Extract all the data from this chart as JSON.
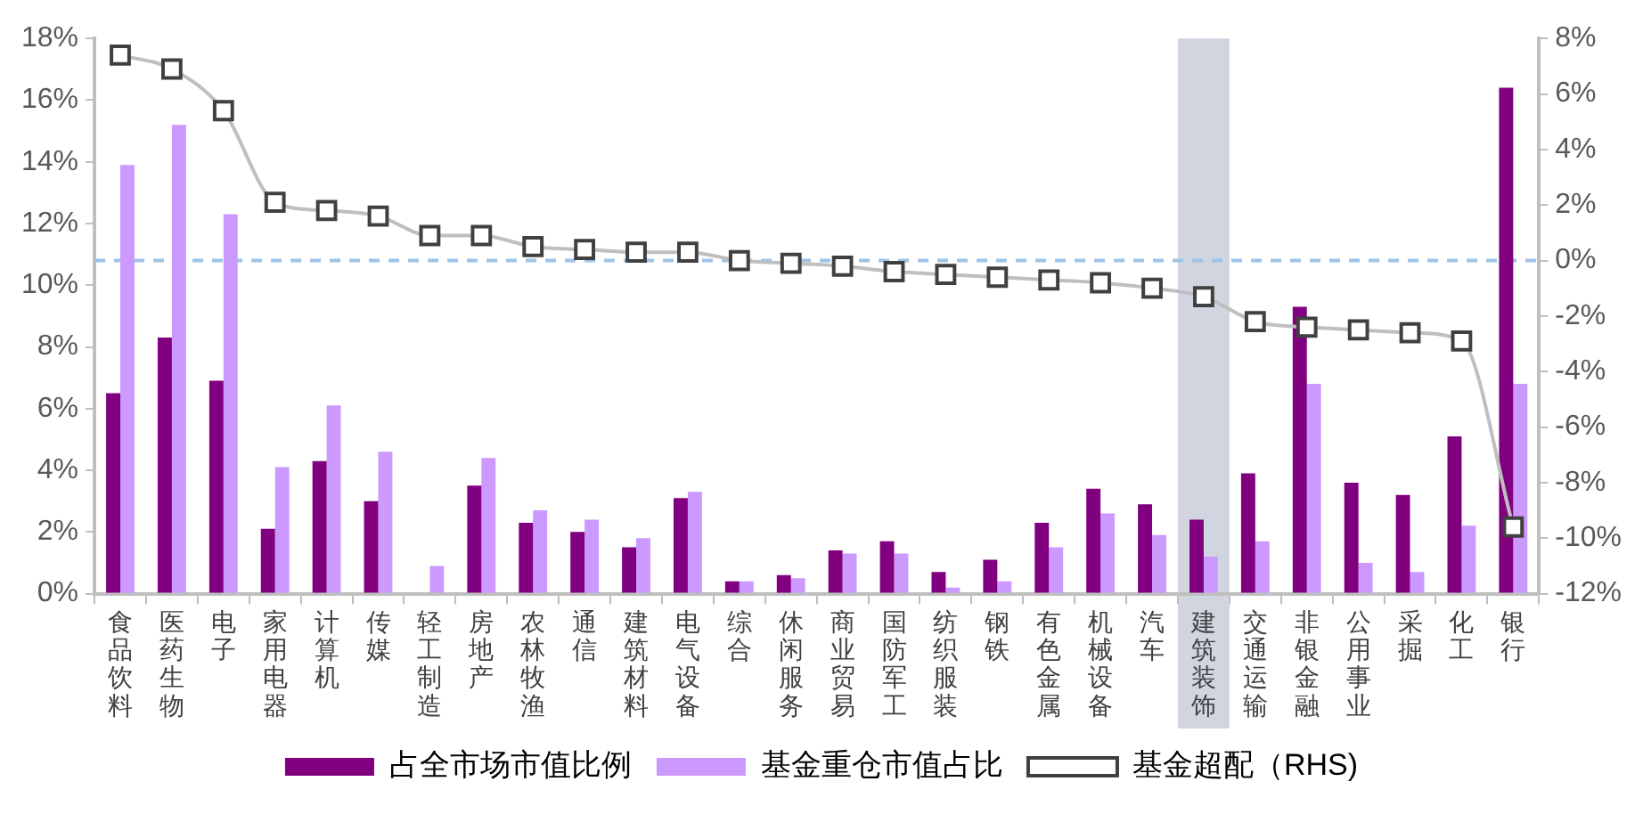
{
  "chart_data": {
    "type": "bar",
    "categories": [
      "食品饮料",
      "医药生物",
      "电子",
      "家用电器",
      "计算机",
      "传媒",
      "轻工制造",
      "房地产",
      "农林牧渔",
      "通信",
      "建筑材料",
      "电气设备",
      "综合",
      "休闲服务",
      "商业贸易",
      "国防军工",
      "纺织服装",
      "钢铁",
      "有色金属",
      "机械设备",
      "汽车",
      "建筑装饰",
      "交通运输",
      "非银金融",
      "公用事业",
      "采掘",
      "化工",
      "银行"
    ],
    "series": [
      {
        "name": "占全市场市值比例",
        "color": "#800080",
        "values": [
          6.5,
          8.3,
          6.9,
          2.1,
          4.3,
          3.0,
          0,
          3.5,
          2.3,
          2.0,
          1.5,
          3.1,
          0.4,
          0.6,
          1.4,
          1.7,
          0.7,
          1.1,
          2.3,
          3.4,
          2.9,
          2.4,
          3.9,
          9.3,
          3.6,
          3.2,
          5.1,
          16.4
        ]
      },
      {
        "name": "基金重仓市值占比",
        "color": "#cc99ff",
        "values": [
          13.9,
          15.2,
          12.3,
          4.1,
          6.1,
          4.6,
          0.9,
          4.4,
          2.7,
          2.4,
          1.8,
          3.3,
          0.4,
          0.5,
          1.3,
          1.3,
          0.2,
          0.4,
          1.5,
          2.6,
          1.9,
          1.2,
          1.7,
          6.8,
          1.0,
          0.7,
          2.2,
          6.8
        ]
      },
      {
        "name": "基金超配（RHS)",
        "type": "line",
        "axis": "y2",
        "color": "#bfbfbf",
        "marker": "square",
        "values": [
          7.4,
          6.9,
          5.4,
          2.1,
          1.8,
          1.6,
          0.9,
          0.9,
          0.5,
          0.4,
          0.3,
          0.3,
          0.0,
          -0.1,
          -0.2,
          -0.4,
          -0.5,
          -0.6,
          -0.7,
          -0.8,
          -1.0,
          -1.3,
          -2.2,
          -2.4,
          -2.5,
          -2.6,
          -2.9,
          -9.6
        ]
      }
    ],
    "ylim": [
      0,
      18
    ],
    "yticks": [
      {
        "value": 0,
        "label": "0%"
      },
      {
        "value": 2,
        "label": "2%"
      },
      {
        "value": 4,
        "label": "4%"
      },
      {
        "value": 6,
        "label": "6%"
      },
      {
        "value": 8,
        "label": "8%"
      },
      {
        "value": 10,
        "label": "10%"
      },
      {
        "value": 12,
        "label": "12%"
      },
      {
        "value": 14,
        "label": "14%"
      },
      {
        "value": 16,
        "label": "16%"
      },
      {
        "value": 18,
        "label": "18%"
      }
    ],
    "y2lim": [
      -12,
      8
    ],
    "y2ticks": [
      {
        "value": -12,
        "label": "-12%"
      },
      {
        "value": -10,
        "label": "-10%"
      },
      {
        "value": -8,
        "label": "-8%"
      },
      {
        "value": -6,
        "label": "-6%"
      },
      {
        "value": -4,
        "label": "-4%"
      },
      {
        "value": -2,
        "label": "-2%"
      },
      {
        "value": 0,
        "label": "0%"
      },
      {
        "value": 2,
        "label": "2%"
      },
      {
        "value": 4,
        "label": "4%"
      },
      {
        "value": 6,
        "label": "6%"
      },
      {
        "value": 8,
        "label": "8%"
      }
    ],
    "ref_lines": [
      {
        "axis": "y2",
        "value": 0,
        "color": "#9dc3e6",
        "line_style": "dashed"
      }
    ],
    "bands": [
      {
        "axis": "x",
        "from": "建筑装饰",
        "to": "建筑装饰",
        "color": "#d0d5e0"
      }
    ],
    "grid": false,
    "legend": "bottom"
  }
}
